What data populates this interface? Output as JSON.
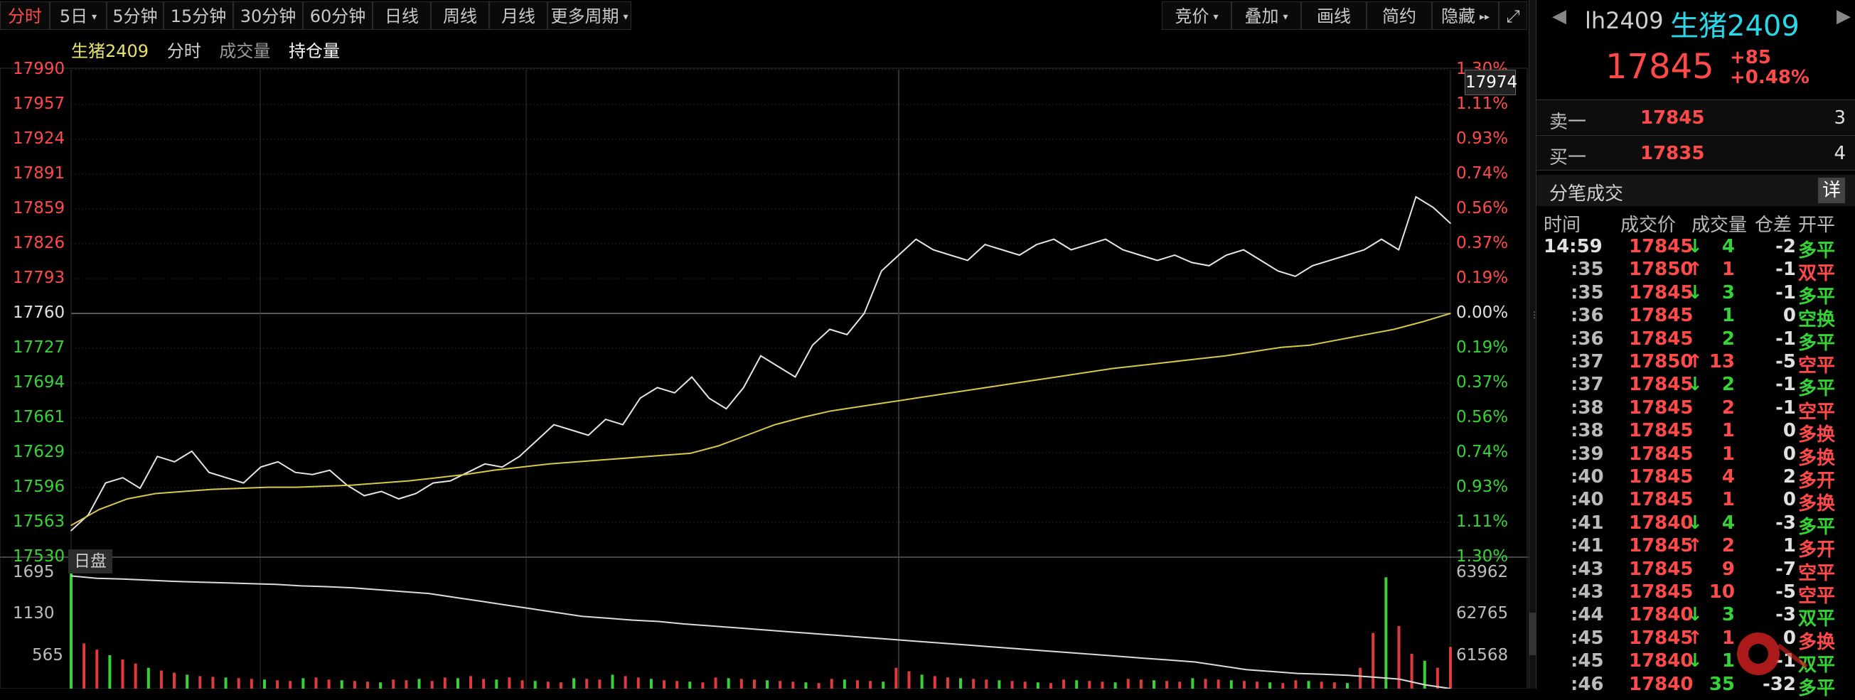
{
  "toolbar": {
    "periods": [
      "分时",
      "5日",
      "5分钟",
      "15分钟",
      "30分钟",
      "60分钟",
      "日线",
      "周线",
      "月线",
      "更多周期"
    ],
    "right": [
      "竞价",
      "叠加",
      "画线",
      "简约",
      "隐藏"
    ],
    "dropdown_caret": "▾",
    "expand_icon": "expand-icon",
    "collapse_icon": "double-chevron-right-icon"
  },
  "legend": {
    "name": "生猪2409",
    "mode": "分时",
    "volume": "成交量",
    "open_interest": "持仓量"
  },
  "price_axis": {
    "labels": [
      "17990",
      "17957",
      "17924",
      "17891",
      "17859",
      "17826",
      "17793",
      "17760",
      "17727",
      "17694",
      "17661",
      "17629",
      "17596",
      "17563",
      "17530"
    ],
    "pct_labels": [
      "1.30%",
      "1.11%",
      "0.93%",
      "0.74%",
      "0.56%",
      "0.37%",
      "0.19%",
      "0.00%",
      "0.19%",
      "0.37%",
      "0.56%",
      "0.74%",
      "0.93%",
      "1.11%",
      "1.30%"
    ],
    "current_tag": "17974",
    "base_price": 17760
  },
  "volume_axis": {
    "tag": "日盘",
    "left_labels": [
      "1695",
      "1130",
      "565"
    ],
    "right_labels": [
      "63962",
      "62765",
      "61568"
    ]
  },
  "chart_data": {
    "type": "line",
    "ylim": [
      17530,
      17990
    ],
    "series": [
      {
        "values": [
          17555,
          17570,
          17600,
          17605,
          17595,
          17625,
          17620,
          17630,
          17610,
          17605,
          17600,
          17615,
          17620,
          17610,
          17608,
          17612,
          17598,
          17588,
          17592,
          17585,
          17590,
          17600,
          17602,
          17610,
          17618,
          17615,
          17625,
          17640,
          17655,
          17650,
          17645,
          17660,
          17655,
          17680,
          17690,
          17685,
          17700,
          17680,
          17670,
          17690,
          17720,
          17710,
          17700,
          17730,
          17745,
          17740,
          17760,
          17800,
          17815,
          17830,
          17820,
          17815,
          17810,
          17825,
          17820,
          17815,
          17825,
          17830,
          17820,
          17825,
          17830,
          17820,
          17815,
          17810,
          17815,
          17808,
          17805,
          17815,
          17820,
          17810,
          17800,
          17795,
          17805,
          17810,
          17815,
          17820,
          17830,
          17820,
          17870,
          17860,
          17845
        ]
      },
      {
        "values": [
          17560,
          17575,
          17585,
          17590,
          17592,
          17594,
          17595,
          17596,
          17596,
          17597,
          17598,
          17600,
          17602,
          17605,
          17608,
          17612,
          17615,
          17618,
          17620,
          17622,
          17624,
          17626,
          17628,
          17635,
          17645,
          17655,
          17662,
          17668,
          17672,
          17676,
          17680,
          17684,
          17688,
          17692,
          17696,
          17700,
          17704,
          17708,
          17711,
          17714,
          17717,
          17720,
          17724,
          17728,
          17730,
          17735,
          17740,
          17745,
          17752,
          17760
        ]
      }
    ],
    "volume": {
      "ylim": [
        0,
        1695
      ],
      "bars": [
        1695,
        650,
        560,
        480,
        420,
        360,
        300,
        260,
        230,
        200,
        180,
        170,
        160,
        150,
        140,
        130,
        120,
        110,
        150,
        160,
        130,
        120,
        110,
        100,
        90,
        130,
        120,
        140,
        110,
        160,
        150,
        180,
        140,
        130,
        160,
        120,
        110,
        100,
        90,
        150,
        140,
        130,
        200,
        180,
        160,
        140,
        120,
        110,
        100,
        90,
        160,
        150,
        140,
        130,
        120,
        110,
        100,
        90,
        80,
        140,
        130,
        120,
        110,
        100,
        300,
        250,
        200,
        180,
        160,
        150,
        140,
        130,
        120,
        110,
        100,
        90,
        80,
        130,
        120,
        110,
        100,
        90,
        140,
        130,
        120,
        110,
        100,
        150,
        140,
        130,
        120,
        110,
        100,
        90,
        80,
        120,
        110,
        100,
        90,
        80,
        300,
        800,
        1600,
        900,
        500,
        400,
        300,
        600
      ]
    },
    "open_interest": {
      "ylim": [
        61000,
        64100
      ],
      "values": [
        63962,
        63900,
        63880,
        63850,
        63820,
        63800,
        63780,
        63760,
        63740,
        63700,
        63680,
        63650,
        63600,
        63550,
        63500,
        63400,
        63300,
        63200,
        63100,
        63000,
        62900,
        62850,
        62800,
        62765,
        62700,
        62650,
        62600,
        62550,
        62500,
        62450,
        62400,
        62350,
        62300,
        62250,
        62200,
        62150,
        62100,
        62050,
        62000,
        61950,
        61900,
        61850,
        61800,
        61750,
        61700,
        61600,
        61500,
        61450,
        61400,
        61380,
        61350,
        61300,
        61250,
        61100,
        61000
      ]
    }
  },
  "panel": {
    "code": "lh2409",
    "name": "生猪2409",
    "price": "17845",
    "change": "+85",
    "change_pct": "+0.48%",
    "sell1": {
      "label": "卖一",
      "price": "17845",
      "qty": "3"
    },
    "buy1": {
      "label": "买一",
      "price": "17835",
      "qty": "4"
    },
    "ticks_title": "分笔成交",
    "detail_button": "详",
    "headers": [
      "时间",
      "成交价",
      "成交量",
      "仓差",
      "开平"
    ],
    "ticks": [
      {
        "time": "14:59",
        "price": "17845",
        "dir": "↓",
        "vol": "4",
        "oi": "-2",
        "type": "多平",
        "tc": "green",
        "pc": "red"
      },
      {
        "time": ":35",
        "price": "17850",
        "dir": "↑",
        "vol": "1",
        "oi": "-1",
        "type": "双平",
        "tc": "red",
        "pc": "red"
      },
      {
        "time": ":35",
        "price": "17845",
        "dir": "↓",
        "vol": "3",
        "oi": "-1",
        "type": "多平",
        "tc": "green",
        "pc": "red"
      },
      {
        "time": ":36",
        "price": "17845",
        "dir": "",
        "vol": "1",
        "oi": "0",
        "type": "空换",
        "tc": "green",
        "pc": "red"
      },
      {
        "time": ":36",
        "price": "17845",
        "dir": "",
        "vol": "2",
        "oi": "-1",
        "type": "多平",
        "tc": "green",
        "pc": "red"
      },
      {
        "time": ":37",
        "price": "17850",
        "dir": "↑",
        "vol": "13",
        "oi": "-5",
        "type": "空平",
        "tc": "red",
        "pc": "red"
      },
      {
        "time": ":37",
        "price": "17845",
        "dir": "↓",
        "vol": "2",
        "oi": "-1",
        "type": "多平",
        "tc": "green",
        "pc": "red"
      },
      {
        "time": ":38",
        "price": "17845",
        "dir": "",
        "vol": "2",
        "oi": "-1",
        "type": "空平",
        "tc": "red",
        "pc": "red"
      },
      {
        "time": ":38",
        "price": "17845",
        "dir": "",
        "vol": "1",
        "oi": "0",
        "type": "多换",
        "tc": "red",
        "pc": "red"
      },
      {
        "time": ":39",
        "price": "17845",
        "dir": "",
        "vol": "1",
        "oi": "0",
        "type": "多换",
        "tc": "red",
        "pc": "red"
      },
      {
        "time": ":40",
        "price": "17845",
        "dir": "",
        "vol": "4",
        "oi": "2",
        "type": "多开",
        "tc": "red",
        "pc": "red"
      },
      {
        "time": ":40",
        "price": "17845",
        "dir": "",
        "vol": "1",
        "oi": "0",
        "type": "多换",
        "tc": "red",
        "pc": "red"
      },
      {
        "time": ":41",
        "price": "17840",
        "dir": "↓",
        "vol": "4",
        "oi": "-3",
        "type": "多平",
        "tc": "green",
        "pc": "red"
      },
      {
        "time": ":41",
        "price": "17845",
        "dir": "↑",
        "vol": "2",
        "oi": "1",
        "type": "多开",
        "tc": "red",
        "pc": "red"
      },
      {
        "time": ":43",
        "price": "17845",
        "dir": "",
        "vol": "9",
        "oi": "-7",
        "type": "空平",
        "tc": "red",
        "pc": "red"
      },
      {
        "time": ":43",
        "price": "17845",
        "dir": "",
        "vol": "10",
        "oi": "-5",
        "type": "空平",
        "tc": "red",
        "pc": "red"
      },
      {
        "time": ":44",
        "price": "17840",
        "dir": "↓",
        "vol": "3",
        "oi": "-3",
        "type": "双平",
        "tc": "green",
        "pc": "red"
      },
      {
        "time": ":45",
        "price": "17845",
        "dir": "↑",
        "vol": "1",
        "oi": "0",
        "type": "多换",
        "tc": "red",
        "pc": "red"
      },
      {
        "time": ":45",
        "price": "17840",
        "dir": "↓",
        "vol": "1",
        "oi": "-1",
        "type": "双平",
        "tc": "green",
        "pc": "red"
      },
      {
        "time": ":46",
        "price": "17840",
        "dir": "",
        "vol": "35",
        "oi": "-32",
        "type": "多平",
        "tc": "green",
        "pc": "red"
      }
    ]
  }
}
